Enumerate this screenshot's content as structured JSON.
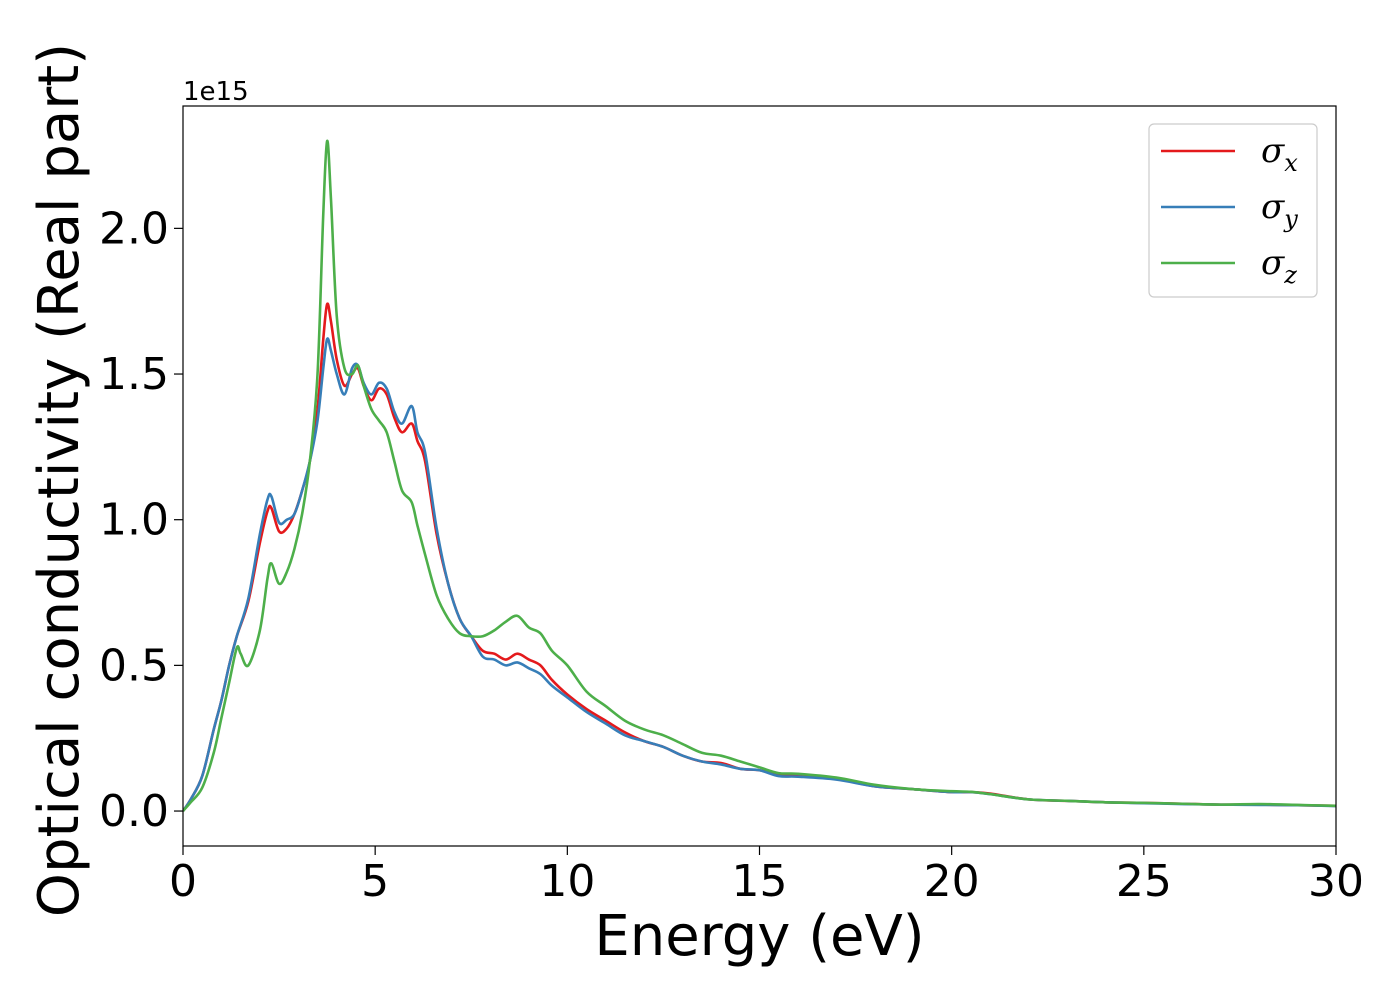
{
  "chart_data": {
    "type": "line",
    "title": "",
    "xlabel": "Energy (eV)",
    "ylabel": "Optical conductivity (Real part)",
    "y_offset_label": "1e15",
    "xlim": [
      0,
      30
    ],
    "ylim": [
      -0.12,
      2.42
    ],
    "x_ticks": [
      0,
      5,
      10,
      15,
      20,
      25,
      30
    ],
    "x_tick_labels": [
      "0",
      "5",
      "10",
      "15",
      "20",
      "25",
      "30"
    ],
    "y_ticks": [
      0.0,
      0.5,
      1.0,
      1.5,
      2.0
    ],
    "y_tick_labels": [
      "0.0",
      "0.5",
      "1.0",
      "1.5",
      "2.0"
    ],
    "grid": false,
    "legend_position": "top-right",
    "series": [
      {
        "name": "σ_x",
        "label_base": "σ",
        "label_sub": "x",
        "color": "#e41a1c",
        "x": [
          0,
          0.2,
          0.5,
          0.8,
          1.0,
          1.2,
          1.4,
          1.7,
          2.0,
          2.2,
          2.3,
          2.5,
          2.7,
          2.9,
          3.1,
          3.3,
          3.5,
          3.65,
          3.75,
          3.85,
          4.0,
          4.2,
          4.4,
          4.55,
          4.7,
          4.9,
          5.1,
          5.3,
          5.5,
          5.7,
          5.95,
          6.1,
          6.3,
          6.6,
          6.9,
          7.2,
          7.5,
          7.8,
          8.1,
          8.4,
          8.7,
          9.0,
          9.3,
          9.6,
          10.0,
          10.5,
          11.0,
          11.5,
          12.0,
          12.5,
          13.0,
          13.5,
          14.0,
          14.5,
          15.0,
          15.5,
          16.0,
          17.0,
          18.0,
          19.0,
          20.0,
          20.5,
          21.0,
          22.0,
          23.0,
          24.0,
          25.0,
          26.0,
          27.0,
          28.0,
          29.0,
          30.0
        ],
        "values": [
          0.0,
          0.04,
          0.12,
          0.28,
          0.38,
          0.5,
          0.6,
          0.72,
          0.92,
          1.03,
          1.04,
          0.96,
          0.97,
          1.02,
          1.1,
          1.2,
          1.38,
          1.62,
          1.74,
          1.68,
          1.55,
          1.46,
          1.5,
          1.52,
          1.46,
          1.41,
          1.45,
          1.43,
          1.35,
          1.3,
          1.33,
          1.27,
          1.2,
          0.95,
          0.78,
          0.66,
          0.6,
          0.55,
          0.54,
          0.52,
          0.54,
          0.52,
          0.5,
          0.45,
          0.4,
          0.35,
          0.31,
          0.27,
          0.24,
          0.22,
          0.19,
          0.17,
          0.165,
          0.145,
          0.14,
          0.125,
          0.12,
          0.11,
          0.085,
          0.075,
          0.065,
          0.065,
          0.06,
          0.04,
          0.035,
          0.03,
          0.028,
          0.025,
          0.022,
          0.022,
          0.02,
          0.018
        ]
      },
      {
        "name": "σ_y",
        "label_base": "σ",
        "label_sub": "y",
        "color": "#377eb8",
        "x": [
          0,
          0.2,
          0.5,
          0.8,
          1.0,
          1.2,
          1.4,
          1.7,
          2.0,
          2.2,
          2.3,
          2.5,
          2.7,
          2.9,
          3.1,
          3.3,
          3.5,
          3.65,
          3.75,
          3.85,
          4.0,
          4.2,
          4.4,
          4.55,
          4.7,
          4.9,
          5.1,
          5.3,
          5.5,
          5.7,
          5.95,
          6.1,
          6.3,
          6.6,
          6.9,
          7.2,
          7.5,
          7.8,
          8.1,
          8.4,
          8.7,
          9.0,
          9.3,
          9.6,
          10.0,
          10.5,
          11.0,
          11.5,
          12.0,
          12.5,
          13.0,
          13.5,
          14.0,
          14.5,
          15.0,
          15.5,
          16.0,
          17.0,
          18.0,
          19.0,
          20.0,
          20.5,
          21.0,
          22.0,
          23.0,
          24.0,
          25.0,
          26.0,
          27.0,
          28.0,
          29.0,
          30.0
        ],
        "values": [
          0.0,
          0.04,
          0.12,
          0.28,
          0.38,
          0.5,
          0.6,
          0.73,
          0.95,
          1.07,
          1.08,
          0.99,
          1.0,
          1.02,
          1.1,
          1.2,
          1.34,
          1.52,
          1.62,
          1.58,
          1.5,
          1.43,
          1.52,
          1.53,
          1.47,
          1.43,
          1.47,
          1.45,
          1.37,
          1.33,
          1.39,
          1.3,
          1.23,
          0.97,
          0.78,
          0.66,
          0.6,
          0.53,
          0.52,
          0.5,
          0.51,
          0.49,
          0.47,
          0.43,
          0.39,
          0.34,
          0.3,
          0.26,
          0.24,
          0.22,
          0.19,
          0.17,
          0.16,
          0.145,
          0.14,
          0.12,
          0.118,
          0.108,
          0.085,
          0.075,
          0.065,
          0.065,
          0.058,
          0.04,
          0.035,
          0.03,
          0.027,
          0.024,
          0.022,
          0.021,
          0.02,
          0.017
        ]
      },
      {
        "name": "σ_z",
        "label_base": "σ",
        "label_sub": "z",
        "color": "#4daf4a",
        "x": [
          0,
          0.2,
          0.5,
          0.8,
          1.0,
          1.2,
          1.4,
          1.5,
          1.7,
          2.0,
          2.2,
          2.3,
          2.5,
          2.7,
          2.9,
          3.1,
          3.3,
          3.5,
          3.65,
          3.75,
          3.85,
          4.0,
          4.2,
          4.4,
          4.55,
          4.7,
          4.9,
          5.1,
          5.3,
          5.5,
          5.7,
          5.95,
          6.1,
          6.3,
          6.6,
          6.9,
          7.2,
          7.5,
          7.8,
          8.1,
          8.4,
          8.7,
          9.0,
          9.3,
          9.6,
          10.0,
          10.5,
          11.0,
          11.5,
          12.0,
          12.5,
          13.0,
          13.5,
          14.0,
          14.5,
          15.0,
          15.5,
          16.0,
          17.0,
          18.0,
          19.0,
          20.0,
          20.5,
          21.0,
          22.0,
          23.0,
          24.0,
          25.0,
          26.0,
          27.0,
          28.0,
          29.0,
          30.0
        ],
        "values": [
          0.0,
          0.03,
          0.08,
          0.2,
          0.32,
          0.44,
          0.56,
          0.54,
          0.5,
          0.62,
          0.8,
          0.85,
          0.78,
          0.82,
          0.9,
          1.02,
          1.2,
          1.5,
          2.05,
          2.3,
          2.1,
          1.7,
          1.52,
          1.5,
          1.53,
          1.46,
          1.38,
          1.34,
          1.3,
          1.2,
          1.1,
          1.06,
          0.98,
          0.88,
          0.74,
          0.66,
          0.61,
          0.6,
          0.6,
          0.62,
          0.65,
          0.67,
          0.63,
          0.61,
          0.55,
          0.5,
          0.41,
          0.36,
          0.31,
          0.28,
          0.26,
          0.23,
          0.2,
          0.19,
          0.17,
          0.15,
          0.13,
          0.128,
          0.115,
          0.09,
          0.075,
          0.068,
          0.066,
          0.058,
          0.04,
          0.035,
          0.03,
          0.028,
          0.025,
          0.022,
          0.024,
          0.021,
          0.018
        ]
      }
    ]
  }
}
